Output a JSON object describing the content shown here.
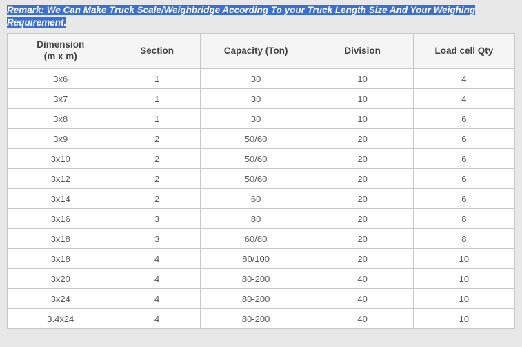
{
  "remark_text": "Remark: We Can Make Truck Scale/Weighbridge According To your Truck Length Size And Your Weighing Requirement.",
  "table": {
    "columns": [
      "Dimension\n(m x m)",
      "Section",
      "Capacity (Ton)",
      "Division",
      "Load cell Qty"
    ],
    "rows": [
      [
        "3x6",
        "1",
        "30",
        "10",
        "4"
      ],
      [
        "3x7",
        "1",
        "30",
        "10",
        "4"
      ],
      [
        "3x8",
        "1",
        "30",
        "10",
        "6"
      ],
      [
        "3x9",
        "2",
        "50/60",
        "20",
        "6"
      ],
      [
        "3x10",
        "2",
        "50/60",
        "20",
        "6"
      ],
      [
        "3x12",
        "2",
        "50/60",
        "20",
        "6"
      ],
      [
        "3x14",
        "2",
        "60",
        "20",
        "6"
      ],
      [
        "3x16",
        "3",
        "80",
        "20",
        "8"
      ],
      [
        "3x18",
        "3",
        "60/80",
        "20",
        "8"
      ],
      [
        "3x18",
        "4",
        "80/100",
        "20",
        "10"
      ],
      [
        "3x20",
        "4",
        "80-200",
        "40",
        "10"
      ],
      [
        "3x24",
        "4",
        "80-200",
        "40",
        "10"
      ],
      [
        "3.4x24",
        "4",
        "80-200",
        "40",
        "10"
      ]
    ]
  },
  "style": {
    "background_color": "#e8e8e8",
    "table_bg": "#ffffff",
    "border_color": "#c8c8c8",
    "header_bg": "#f5f5f5",
    "header_text_color": "#444444",
    "cell_text_color": "#555555",
    "highlight_bg": "#3a6fd8",
    "highlight_text": "#ffffff",
    "header_fontsize": 13.5,
    "cell_fontsize": 13,
    "remark_fontsize": 13.5,
    "col_widths_pct": [
      21,
      17,
      22,
      20,
      20
    ]
  }
}
